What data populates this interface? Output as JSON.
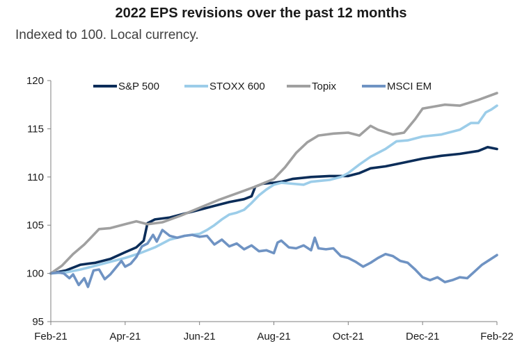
{
  "chart_data": {
    "type": "line",
    "title": "2022 EPS revisions over the past 12 months",
    "subtitle": "Indexed to 100. Local currency.",
    "xlabel": "",
    "ylabel": "",
    "ylim": [
      95,
      120
    ],
    "yticks": [
      95,
      100,
      105,
      110,
      115,
      120
    ],
    "xlim": [
      0,
      12
    ],
    "xticks": [
      {
        "m": 0,
        "label": "Feb-21"
      },
      {
        "m": 2,
        "label": "Apr-21"
      },
      {
        "m": 4,
        "label": "Jun-21"
      },
      {
        "m": 6,
        "label": "Aug-21"
      },
      {
        "m": 8,
        "label": "Oct-21"
      },
      {
        "m": 10,
        "label": "Dec-21"
      },
      {
        "m": 12,
        "label": "Feb-22"
      }
    ],
    "grid": false,
    "legend": "top",
    "series": [
      {
        "name": "S&P 500",
        "color": "#0b2d59",
        "width": 3.6,
        "points": [
          [
            0,
            100
          ],
          [
            0.4,
            100.3
          ],
          [
            0.8,
            100.9
          ],
          [
            1.2,
            101.1
          ],
          [
            1.6,
            101.5
          ],
          [
            2.0,
            102.2
          ],
          [
            2.3,
            102.7
          ],
          [
            2.5,
            103.4
          ],
          [
            2.6,
            105.2
          ],
          [
            2.8,
            105.6
          ],
          [
            3.2,
            105.8
          ],
          [
            3.6,
            106.2
          ],
          [
            4.0,
            106.6
          ],
          [
            4.4,
            107.0
          ],
          [
            4.8,
            107.4
          ],
          [
            5.2,
            107.7
          ],
          [
            5.4,
            108.0
          ],
          [
            5.5,
            109.0
          ],
          [
            5.7,
            109.3
          ],
          [
            6.0,
            109.4
          ],
          [
            6.2,
            109.5
          ],
          [
            6.5,
            109.8
          ],
          [
            7.0,
            110.0
          ],
          [
            7.5,
            110.1
          ],
          [
            8.0,
            110.1
          ],
          [
            8.3,
            110.4
          ],
          [
            8.6,
            110.9
          ],
          [
            9.0,
            111.1
          ],
          [
            9.5,
            111.5
          ],
          [
            10.0,
            111.9
          ],
          [
            10.5,
            112.2
          ],
          [
            11.0,
            112.4
          ],
          [
            11.5,
            112.7
          ],
          [
            11.75,
            113.1
          ],
          [
            12,
            112.9
          ]
        ]
      },
      {
        "name": "STOXX 600",
        "color": "#9ccde9",
        "width": 3.6,
        "points": [
          [
            0,
            100
          ],
          [
            0.4,
            100.1
          ],
          [
            0.8,
            100.4
          ],
          [
            1.2,
            100.8
          ],
          [
            1.6,
            101.2
          ],
          [
            2.0,
            101.6
          ],
          [
            2.4,
            102.1
          ],
          [
            2.8,
            102.7
          ],
          [
            3.2,
            103.5
          ],
          [
            3.6,
            103.9
          ],
          [
            4.0,
            104.1
          ],
          [
            4.2,
            104.5
          ],
          [
            4.4,
            105.0
          ],
          [
            4.6,
            105.6
          ],
          [
            4.8,
            106.1
          ],
          [
            5.0,
            106.3
          ],
          [
            5.2,
            106.6
          ],
          [
            5.4,
            107.3
          ],
          [
            5.6,
            108.1
          ],
          [
            5.8,
            108.7
          ],
          [
            6.0,
            109.2
          ],
          [
            6.2,
            109.4
          ],
          [
            6.5,
            109.3
          ],
          [
            6.8,
            109.2
          ],
          [
            7.0,
            109.5
          ],
          [
            7.5,
            109.7
          ],
          [
            7.8,
            110.0
          ],
          [
            8.0,
            110.4
          ],
          [
            8.3,
            111.3
          ],
          [
            8.6,
            112.1
          ],
          [
            9.0,
            112.9
          ],
          [
            9.3,
            113.7
          ],
          [
            9.6,
            113.8
          ],
          [
            10.0,
            114.2
          ],
          [
            10.5,
            114.4
          ],
          [
            11.0,
            114.9
          ],
          [
            11.3,
            115.6
          ],
          [
            11.5,
            115.6
          ],
          [
            11.7,
            116.7
          ],
          [
            11.85,
            117.0
          ],
          [
            12,
            117.4
          ]
        ]
      },
      {
        "name": "Topix",
        "color": "#a0a0a0",
        "width": 3.6,
        "points": [
          [
            0,
            100
          ],
          [
            0.3,
            100.8
          ],
          [
            0.6,
            102.0
          ],
          [
            0.9,
            103.0
          ],
          [
            1.1,
            103.8
          ],
          [
            1.3,
            104.6
          ],
          [
            1.6,
            104.7
          ],
          [
            2.0,
            105.1
          ],
          [
            2.3,
            105.4
          ],
          [
            2.6,
            105.1
          ],
          [
            3.0,
            105.3
          ],
          [
            3.5,
            106.0
          ],
          [
            4.0,
            106.8
          ],
          [
            4.5,
            107.6
          ],
          [
            5.0,
            108.3
          ],
          [
            5.5,
            109.0
          ],
          [
            6.0,
            109.8
          ],
          [
            6.3,
            111.0
          ],
          [
            6.6,
            112.5
          ],
          [
            6.9,
            113.6
          ],
          [
            7.2,
            114.3
          ],
          [
            7.6,
            114.5
          ],
          [
            8.0,
            114.6
          ],
          [
            8.3,
            114.3
          ],
          [
            8.6,
            115.3
          ],
          [
            8.8,
            114.9
          ],
          [
            9.2,
            114.4
          ],
          [
            9.5,
            114.6
          ],
          [
            9.8,
            116.0
          ],
          [
            10.0,
            117.1
          ],
          [
            10.3,
            117.3
          ],
          [
            10.6,
            117.5
          ],
          [
            11.0,
            117.4
          ],
          [
            11.5,
            118.0
          ],
          [
            12,
            118.7
          ]
        ]
      },
      {
        "name": "MSCI EM",
        "color": "#6f93c3",
        "width": 3.6,
        "points": [
          [
            0,
            100
          ],
          [
            0.2,
            100.1
          ],
          [
            0.35,
            100.0
          ],
          [
            0.5,
            99.5
          ],
          [
            0.6,
            99.9
          ],
          [
            0.75,
            98.8
          ],
          [
            0.9,
            99.5
          ],
          [
            1.0,
            98.6
          ],
          [
            1.15,
            100.3
          ],
          [
            1.3,
            100.4
          ],
          [
            1.45,
            99.4
          ],
          [
            1.6,
            99.9
          ],
          [
            1.75,
            100.6
          ],
          [
            1.9,
            101.3
          ],
          [
            2.0,
            100.7
          ],
          [
            2.15,
            101.0
          ],
          [
            2.3,
            101.7
          ],
          [
            2.45,
            102.8
          ],
          [
            2.6,
            103.1
          ],
          [
            2.75,
            104.0
          ],
          [
            2.85,
            103.3
          ],
          [
            3.0,
            104.5
          ],
          [
            3.2,
            103.9
          ],
          [
            3.4,
            103.7
          ],
          [
            3.6,
            103.9
          ],
          [
            3.8,
            104.0
          ],
          [
            4.0,
            103.8
          ],
          [
            4.2,
            103.9
          ],
          [
            4.4,
            103.0
          ],
          [
            4.6,
            103.5
          ],
          [
            4.8,
            102.8
          ],
          [
            5.0,
            103.1
          ],
          [
            5.2,
            102.5
          ],
          [
            5.4,
            102.9
          ],
          [
            5.6,
            102.3
          ],
          [
            5.8,
            102.4
          ],
          [
            6.0,
            102.1
          ],
          [
            6.1,
            103.2
          ],
          [
            6.2,
            103.4
          ],
          [
            6.4,
            102.7
          ],
          [
            6.6,
            102.6
          ],
          [
            6.8,
            102.9
          ],
          [
            7.0,
            102.4
          ],
          [
            7.1,
            103.7
          ],
          [
            7.2,
            102.6
          ],
          [
            7.4,
            102.5
          ],
          [
            7.6,
            102.6
          ],
          [
            7.8,
            101.8
          ],
          [
            8.0,
            101.6
          ],
          [
            8.2,
            101.2
          ],
          [
            8.4,
            100.7
          ],
          [
            8.6,
            101.1
          ],
          [
            8.8,
            101.6
          ],
          [
            9.0,
            102.0
          ],
          [
            9.2,
            101.8
          ],
          [
            9.4,
            101.3
          ],
          [
            9.6,
            101.1
          ],
          [
            9.8,
            100.4
          ],
          [
            10.0,
            99.6
          ],
          [
            10.2,
            99.3
          ],
          [
            10.4,
            99.6
          ],
          [
            10.6,
            99.1
          ],
          [
            10.8,
            99.3
          ],
          [
            11.0,
            99.6
          ],
          [
            11.2,
            99.5
          ],
          [
            11.4,
            100.2
          ],
          [
            11.6,
            100.9
          ],
          [
            11.8,
            101.4
          ],
          [
            12,
            101.9
          ]
        ]
      }
    ]
  }
}
